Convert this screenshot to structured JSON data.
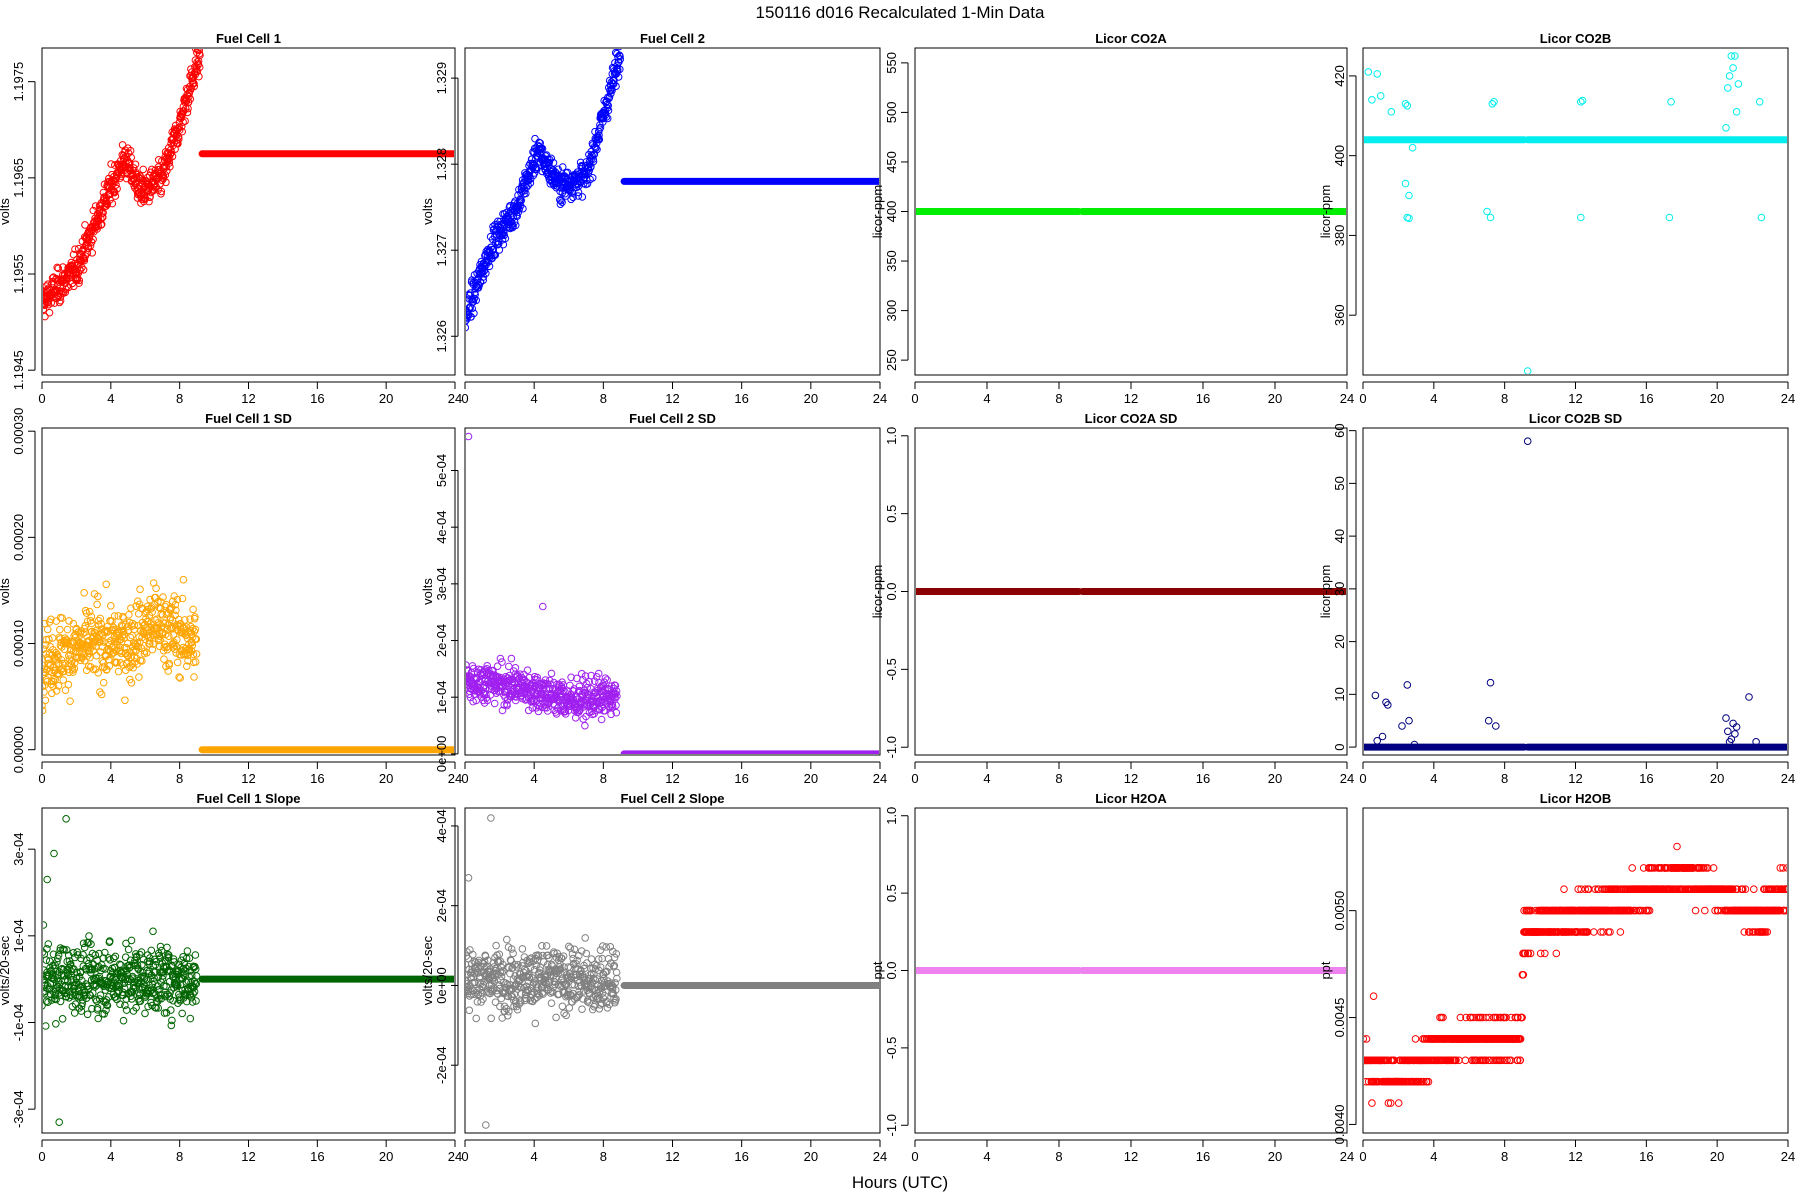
{
  "title": "150116   d016   Recalculated 1-Min Data",
  "xlabel": "Hours (UTC)",
  "chart_data": [
    {
      "type": "scatter",
      "title": "Fuel Cell 1",
      "ylabel": "volts",
      "color": "#ff0000",
      "xlim": [
        0,
        24
      ],
      "ylim": [
        1.19445,
        1.19785
      ],
      "xticks": [
        0,
        4,
        8,
        12,
        16,
        20,
        24
      ],
      "yticks": [
        1.1945,
        1.1955,
        1.1965,
        1.1975
      ],
      "yticklabels": [
        "1.1945",
        "1.1955",
        "1.1965",
        "1.1975"
      ],
      "active": {
        "x": [
          0,
          9.2
        ],
        "trend": [
          [
            0,
            1.1952
          ],
          [
            2,
            1.19555
          ],
          [
            3.5,
            1.1962
          ],
          [
            4.8,
            1.1967
          ],
          [
            5.8,
            1.19635
          ],
          [
            7,
            1.1965
          ],
          [
            8,
            1.19705
          ],
          [
            9,
            1.1977
          ]
        ],
        "noise": 0.00025
      },
      "flat": {
        "x": [
          9.3,
          24
        ],
        "y": 1.19675
      }
    },
    {
      "type": "scatter",
      "title": "Fuel Cell 2",
      "ylabel": "volts",
      "color": "#0000ff",
      "xlim": [
        0,
        24
      ],
      "ylim": [
        1.32555,
        1.32935
      ],
      "xticks": [
        0,
        4,
        8,
        12,
        16,
        20,
        24
      ],
      "yticks": [
        1.326,
        1.327,
        1.328,
        1.329
      ],
      "yticklabels": [
        "1.326",
        "1.327",
        "1.328",
        "1.329"
      ],
      "active": {
        "x": [
          0,
          9.0
        ],
        "trend": [
          [
            0,
            1.3262
          ],
          [
            1.5,
            1.32705
          ],
          [
            3,
            1.3275
          ],
          [
            4.2,
            1.32815
          ],
          [
            5.5,
            1.32775
          ],
          [
            7,
            1.32785
          ],
          [
            8.2,
            1.3287
          ],
          [
            9,
            1.3293
          ]
        ],
        "noise": 0.00025
      },
      "flat": {
        "x": [
          9.2,
          24
        ],
        "y": 1.3278
      }
    },
    {
      "type": "scatter",
      "title": "Licor CO2A",
      "ylabel": "licor-ppm",
      "color": "#00ee00",
      "xlim": [
        0,
        24
      ],
      "ylim": [
        235,
        565
      ],
      "xticks": [
        0,
        4,
        8,
        12,
        16,
        20,
        24
      ],
      "yticks": [
        250,
        300,
        350,
        400,
        450,
        500,
        550
      ],
      "yticklabels": [
        "250",
        "300",
        "350",
        "400",
        "450",
        "500",
        "550"
      ],
      "segments": [
        {
          "x": [
            0,
            9.1
          ],
          "y": 400
        },
        {
          "x": [
            9.3,
            24
          ],
          "y": 400
        }
      ]
    },
    {
      "type": "scatter",
      "title": "Licor CO2B",
      "ylabel": "licor-ppm",
      "color": "#00eeee",
      "xlim": [
        0,
        24
      ],
      "ylim": [
        345,
        427
      ],
      "xticks": [
        0,
        4,
        8,
        12,
        16,
        20,
        24
      ],
      "yticks": [
        360,
        380,
        400,
        420
      ],
      "yticklabels": [
        "360",
        "380",
        "400",
        "420"
      ],
      "segments": [
        {
          "x": [
            0,
            9.1
          ],
          "y": 404
        },
        {
          "x": [
            9.3,
            24
          ],
          "y": 404
        }
      ],
      "points": [
        [
          0.3,
          421
        ],
        [
          0.8,
          420.5
        ],
        [
          0.5,
          414
        ],
        [
          1.0,
          415
        ],
        [
          1.6,
          411
        ],
        [
          2.4,
          413
        ],
        [
          2.5,
          412.5
        ],
        [
          2.4,
          393
        ],
        [
          2.6,
          390
        ],
        [
          2.5,
          384.5
        ],
        [
          2.6,
          384.3
        ],
        [
          2.8,
          402
        ],
        [
          7.0,
          386
        ],
        [
          7.2,
          384.5
        ],
        [
          7.3,
          413
        ],
        [
          7.4,
          413.5
        ],
        [
          9.3,
          346
        ],
        [
          12.3,
          384.5
        ],
        [
          12.3,
          413.5
        ],
        [
          12.4,
          413.8
        ],
        [
          17.3,
          384.5
        ],
        [
          17.4,
          413.5
        ],
        [
          20.5,
          407
        ],
        [
          20.6,
          417
        ],
        [
          20.7,
          420
        ],
        [
          20.8,
          425
        ],
        [
          20.9,
          422
        ],
        [
          21.0,
          425
        ],
        [
          21.2,
          418
        ],
        [
          21.1,
          411
        ],
        [
          22.4,
          413.5
        ],
        [
          22.5,
          384.5
        ]
      ]
    },
    {
      "type": "scatter",
      "title": "Fuel Cell 1 SD",
      "ylabel": "volts",
      "color": "#ffa500",
      "xlim": [
        0,
        24
      ],
      "ylim": [
        -5e-06,
        0.000303
      ],
      "xticks": [
        0,
        4,
        8,
        12,
        16,
        20,
        24
      ],
      "yticks": [
        0,
        0.0001,
        0.0002,
        0.0003
      ],
      "yticklabels": [
        "0.00000",
        "0.00010",
        "0.00020",
        "0.00030"
      ],
      "active": {
        "x": [
          0,
          9.0
        ],
        "trend": [
          [
            0,
            8.5e-05
          ],
          [
            3,
            0.0001
          ],
          [
            5,
            0.0001
          ],
          [
            6.5,
            0.00012
          ],
          [
            9,
            0.0001
          ]
        ],
        "noise": 5e-05
      },
      "flat": {
        "x": [
          9.3,
          24
        ],
        "y": 0
      }
    },
    {
      "type": "scatter",
      "title": "Fuel Cell 2 SD",
      "ylabel": "volts",
      "color": "#a020f0",
      "xlim": [
        0,
        24
      ],
      "ylim": [
        -2e-06,
        0.000575
      ],
      "xticks": [
        0,
        4,
        8,
        12,
        16,
        20,
        24
      ],
      "yticks": [
        0,
        0.0001,
        0.0002,
        0.0003,
        0.0004,
        0.0005
      ],
      "yticklabels": [
        "0e+00",
        "1e-04",
        "2e-04",
        "3e-04",
        "4e-04",
        "5e-04"
      ],
      "active": {
        "x": [
          0,
          8.8
        ],
        "trend": [
          [
            0,
            0.00013
          ],
          [
            3,
            0.00012
          ],
          [
            6,
            9.5e-05
          ],
          [
            8.8,
            0.0001
          ]
        ],
        "noise": 5e-05
      },
      "flat": {
        "x": [
          9.2,
          24
        ],
        "y": 0
      },
      "points": [
        [
          0.2,
          0.00056
        ],
        [
          4.5,
          0.00026
        ]
      ]
    },
    {
      "type": "scatter",
      "title": "Licor CO2A SD",
      "ylabel": "licor-ppm",
      "color": "#8b0000",
      "xlim": [
        0,
        24
      ],
      "ylim": [
        -1.05,
        1.05
      ],
      "xticks": [
        0,
        4,
        8,
        12,
        16,
        20,
        24
      ],
      "yticks": [
        -1,
        -0.5,
        0,
        0.5,
        1
      ],
      "yticklabels": [
        "-1.0",
        "-0.5",
        "0.0",
        "0.5",
        "1.0"
      ],
      "segments": [
        {
          "x": [
            0,
            9.1
          ],
          "y": 0
        },
        {
          "x": [
            9.3,
            24
          ],
          "y": 0
        }
      ]
    },
    {
      "type": "scatter",
      "title": "Licor CO2B SD",
      "ylabel": "licor-ppm",
      "color": "#000080",
      "xlim": [
        0,
        24
      ],
      "ylim": [
        -1.5,
        60.5
      ],
      "xticks": [
        0,
        4,
        8,
        12,
        16,
        20,
        24
      ],
      "yticks": [
        0,
        10,
        20,
        30,
        40,
        50,
        60
      ],
      "yticklabels": [
        "0",
        "10",
        "20",
        "30",
        "40",
        "50",
        "60"
      ],
      "segments": [
        {
          "x": [
            0,
            9.1
          ],
          "y": 0
        },
        {
          "x": [
            9.3,
            24
          ],
          "y": 0
        }
      ],
      "points": [
        [
          0.7,
          9.8
        ],
        [
          1.3,
          8.5
        ],
        [
          1.4,
          8.0
        ],
        [
          0.8,
          1.2
        ],
        [
          1.1,
          2.0
        ],
        [
          2.2,
          4.0
        ],
        [
          2.5,
          11.8
        ],
        [
          2.6,
          5.0
        ],
        [
          2.9,
          0.5
        ],
        [
          7.2,
          12.2
        ],
        [
          7.1,
          5.0
        ],
        [
          7.5,
          4.0
        ],
        [
          9.3,
          58
        ],
        [
          20.5,
          5.5
        ],
        [
          20.6,
          3.0
        ],
        [
          20.8,
          1.5
        ],
        [
          20.9,
          4.5
        ],
        [
          21.0,
          2.5
        ],
        [
          21.1,
          3.8
        ],
        [
          20.7,
          1.0
        ],
        [
          21.8,
          9.5
        ],
        [
          22.2,
          1.0
        ]
      ]
    },
    {
      "type": "scatter",
      "title": "Fuel Cell 1 Slope",
      "ylabel": "volts/20-sec",
      "color": "#006400",
      "xlim": [
        0,
        24
      ],
      "ylim": [
        -0.000355,
        0.000395
      ],
      "xticks": [
        0,
        4,
        8,
        12,
        16,
        20,
        24
      ],
      "yticks": [
        -0.0003,
        -0.0001,
        0.0001,
        0.0003
      ],
      "yticklabels": [
        "-3e-04",
        "-1e-04",
        "1e-04",
        "3e-04"
      ],
      "active": {
        "x": [
          0,
          9.0
        ],
        "trend": [
          [
            0,
            0
          ],
          [
            9,
            0
          ]
        ],
        "noise": 0.00011
      },
      "flat": {
        "x": [
          9.3,
          24
        ],
        "y": 0
      },
      "points": [
        [
          1.4,
          0.00037
        ],
        [
          1.0,
          -0.00033
        ],
        [
          0.3,
          0.00023
        ],
        [
          0.7,
          0.00029
        ]
      ]
    },
    {
      "type": "scatter",
      "title": "Fuel Cell 2 Slope",
      "ylabel": "volts/20-sec",
      "color": "#808080",
      "xlim": [
        0,
        24
      ],
      "ylim": [
        -0.00037,
        0.000445
      ],
      "xticks": [
        0,
        4,
        8,
        12,
        16,
        20,
        24
      ],
      "yticks": [
        -0.0002,
        0,
        0.0002,
        0.0004
      ],
      "yticklabels": [
        "-2e-04",
        "0e+00",
        "2e-04",
        "4e-04"
      ],
      "active": {
        "x": [
          0,
          8.8
        ],
        "trend": [
          [
            0,
            2e-05
          ],
          [
            8.8,
            1e-05
          ]
        ],
        "noise": 0.00011
      },
      "flat": {
        "x": [
          9.2,
          24
        ],
        "y": 0
      },
      "points": [
        [
          1.5,
          0.00042
        ],
        [
          1.2,
          -0.00035
        ],
        [
          0.2,
          0.00027
        ]
      ]
    },
    {
      "type": "scatter",
      "title": "Licor H2OA",
      "ylabel": "ppt",
      "color": "#ee82ee",
      "xlim": [
        0,
        24
      ],
      "ylim": [
        -1.05,
        1.05
      ],
      "xticks": [
        0,
        4,
        8,
        12,
        16,
        20,
        24
      ],
      "yticks": [
        -1,
        -0.5,
        0,
        0.5,
        1
      ],
      "yticklabels": [
        "-1.0",
        "-0.5",
        "0.0",
        "0.5",
        "1.0"
      ],
      "segments": [
        {
          "x": [
            0,
            9.1
          ],
          "y": 0
        },
        {
          "x": [
            9.3,
            24
          ],
          "y": 0
        }
      ]
    },
    {
      "type": "scatter",
      "title": "Licor H2OB",
      "ylabel": "ppt",
      "color": "#ff0000",
      "xlim": [
        0,
        24
      ],
      "ylim": [
        0.00396,
        0.00548
      ],
      "xticks": [
        0,
        4,
        8,
        12,
        16,
        20,
        24
      ],
      "yticks": [
        0.004,
        0.0045,
        0.005
      ],
      "yticklabels": [
        "0.0040",
        "0.0045",
        "0.0050"
      ],
      "quantized": true,
      "step": 0.0001,
      "active": {
        "x": [
          0,
          24
        ],
        "trend": [
          [
            0,
            0.0043
          ],
          [
            2,
            0.0042
          ],
          [
            4,
            0.00435
          ],
          [
            6,
            0.0044
          ],
          [
            8.9,
            0.0044
          ],
          [
            9.1,
            0.0049
          ],
          [
            12,
            0.00497
          ],
          [
            16,
            0.0051
          ],
          [
            18,
            0.00517
          ],
          [
            20,
            0.0051
          ],
          [
            22,
            0.00497
          ],
          [
            24,
            0.0051
          ]
        ],
        "noise": 0.00013
      },
      "points": [
        [
          0.6,
          0.0046
        ],
        [
          0.5,
          0.0041
        ]
      ]
    }
  ]
}
